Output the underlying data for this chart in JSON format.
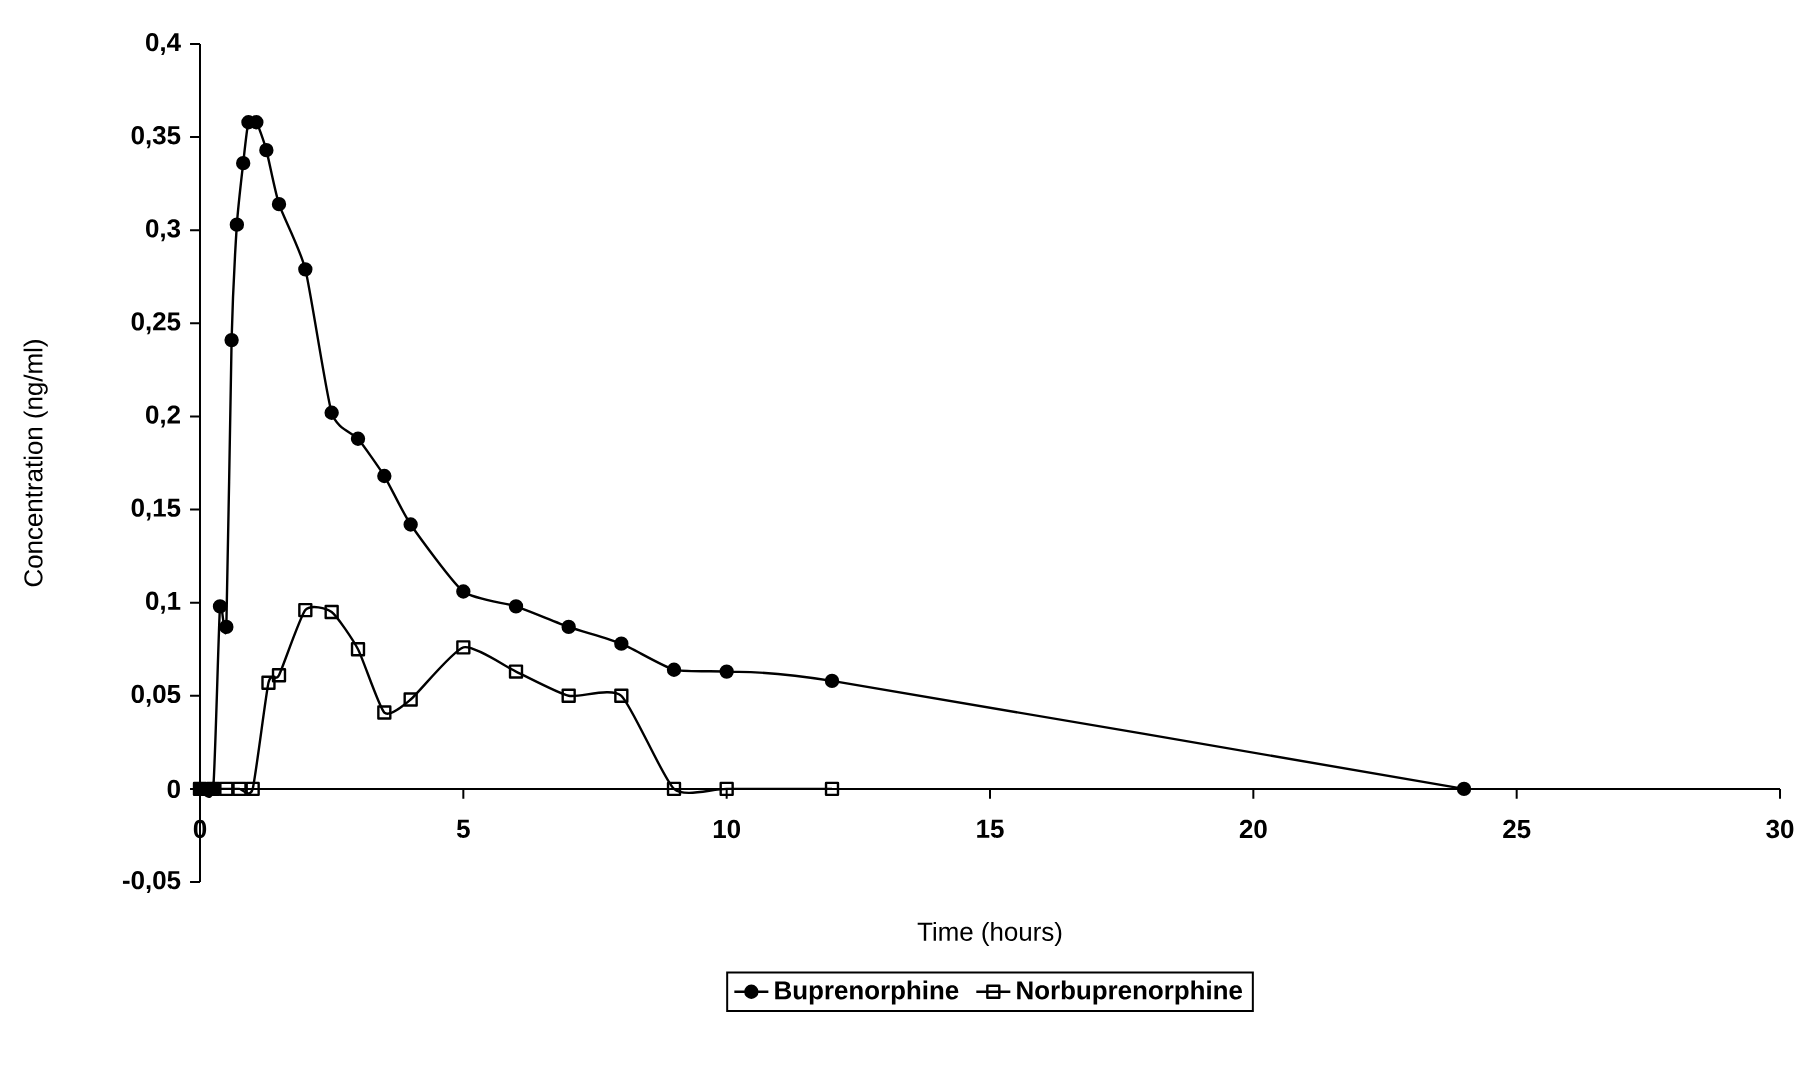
{
  "chart_data": {
    "type": "line",
    "xlabel": "Time (hours)",
    "ylabel": "Concentration (ng/ml)",
    "xlim": [
      0,
      30
    ],
    "xticks": [
      0,
      5,
      10,
      15,
      20,
      25,
      30
    ],
    "ylim": [
      -0.05,
      0.4
    ],
    "yticks": [
      {
        "value": -0.05,
        "label": "-0,05"
      },
      0,
      {
        "value": 0.05,
        "label": "0,05"
      },
      {
        "value": 0.1,
        "label": "0,1"
      },
      {
        "value": 0.15,
        "label": "0,15"
      },
      {
        "value": 0.2,
        "label": "0,2"
      },
      {
        "value": 0.25,
        "label": "0,25"
      },
      {
        "value": 0.3,
        "label": "0,3"
      },
      {
        "value": 0.35,
        "label": "0,35"
      },
      {
        "value": 0.4,
        "label": "0,4"
      }
    ],
    "grid": false,
    "legend": "bottom",
    "series": [
      {
        "name": "Buprenorphine",
        "color": "#000000",
        "marker": "circle",
        "x": [
          0,
          0.25,
          0.38,
          0.5,
          0.6,
          0.7,
          0.82,
          0.92,
          1.07,
          1.26,
          1.5,
          2,
          2.5,
          3,
          3.5,
          4,
          5,
          6,
          7,
          8,
          9,
          10,
          12,
          24
        ],
        "values": [
          0,
          0,
          0.098,
          0.087,
          0.241,
          0.303,
          0.336,
          0.358,
          0.358,
          0.343,
          0.314,
          0.279,
          0.202,
          0.188,
          0.168,
          0.142,
          0.106,
          0.098,
          0.087,
          0.078,
          0.064,
          0.063,
          0.058,
          0
        ]
      },
      {
        "name": "Norbuprenorphine",
        "color": "#000000",
        "marker": "square",
        "x": [
          0,
          0.25,
          0.5,
          0.75,
          1,
          1.3,
          1.5,
          2,
          2.5,
          3,
          3.5,
          4,
          5,
          6,
          7,
          8,
          9,
          10,
          12
        ],
        "values": [
          0,
          0,
          0,
          0,
          0,
          0.057,
          0.061,
          0.096,
          0.095,
          0.075,
          0.041,
          0.048,
          0.076,
          0.063,
          0.05,
          0.05,
          0,
          0,
          0
        ]
      }
    ]
  }
}
